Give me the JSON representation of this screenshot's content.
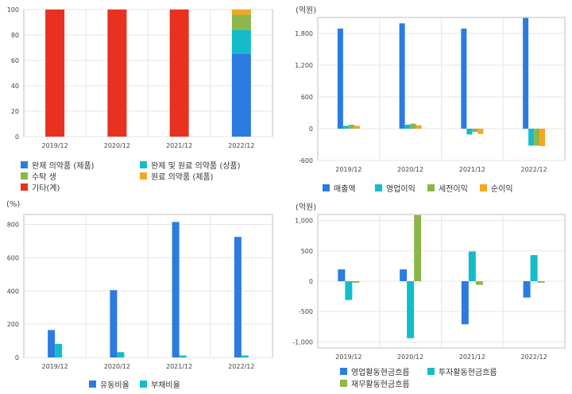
{
  "colors": {
    "blue": "#2b7be0",
    "teal": "#14bcc9",
    "green": "#8db64a",
    "orange": "#f5a623",
    "red": "#e8311f",
    "grid": "#e6e6e6",
    "axis": "#bfbfbf"
  },
  "chart_data": [
    {
      "id": "product-mix",
      "type": "bar",
      "stacked": true,
      "unit": "",
      "categories": [
        "2019/12",
        "2020/12",
        "2021/12",
        "2022/12"
      ],
      "ylim": [
        0,
        100
      ],
      "yticks": [
        "0",
        "20",
        "40",
        "60",
        "80",
        "100"
      ],
      "grid": true,
      "legend_position": "bottom",
      "series": [
        {
          "name": "완제 의약품 (제품)",
          "color": "#2b7be0",
          "values": [
            0,
            0,
            0,
            65
          ]
        },
        {
          "name": "완제 및 원료 의약품 (상품)",
          "color": "#14bcc9",
          "values": [
            0,
            0,
            0,
            19
          ]
        },
        {
          "name": "수탁 생",
          "color": "#8db64a",
          "values": [
            0,
            0,
            0,
            12
          ]
        },
        {
          "name": "원료 의약품 (제품)",
          "color": "#f5a623",
          "values": [
            0,
            0,
            0,
            4
          ]
        },
        {
          "name": "기타(계)",
          "color": "#e8311f",
          "values": [
            100,
            100,
            100,
            0
          ]
        }
      ]
    },
    {
      "id": "income",
      "type": "bar",
      "stacked": false,
      "unit": "(억원)",
      "categories": [
        "2019/12",
        "2020/12",
        "2021/12",
        "2022/12"
      ],
      "ylim": [
        -600,
        2100
      ],
      "yticks": [
        "-600",
        "0",
        "600",
        "1,200",
        "1,800"
      ],
      "grid": true,
      "legend_position": "bottom",
      "series": [
        {
          "name": "매출액",
          "color": "#2b7be0",
          "values": [
            1890,
            1990,
            1890,
            2090
          ]
        },
        {
          "name": "영업이익",
          "color": "#14bcc9",
          "values": [
            55,
            75,
            -110,
            -320
          ]
        },
        {
          "name": "세전이익",
          "color": "#8db64a",
          "values": [
            75,
            95,
            -60,
            -320
          ]
        },
        {
          "name": "순이익",
          "color": "#f5a623",
          "values": [
            55,
            65,
            -100,
            -330
          ]
        }
      ]
    },
    {
      "id": "ratios",
      "type": "bar",
      "stacked": false,
      "unit": "(%)",
      "categories": [
        "2019/12",
        "2020/12",
        "2021/12",
        "2022/12"
      ],
      "ylim": [
        0,
        860
      ],
      "yticks": [
        "0",
        "200",
        "400",
        "600",
        "800"
      ],
      "grid": true,
      "legend_position": "bottom",
      "series": [
        {
          "name": "유동비율",
          "color": "#2b7be0",
          "values": [
            165,
            405,
            815,
            725
          ]
        },
        {
          "name": "부채비율",
          "color": "#14bcc9",
          "values": [
            82,
            32,
            12,
            12
          ]
        }
      ]
    },
    {
      "id": "cashflow",
      "type": "bar",
      "stacked": false,
      "unit": "(억원)",
      "categories": [
        "2019/12",
        "2020/12",
        "2021/12",
        "2022/12"
      ],
      "ylim": [
        -1100,
        1100
      ],
      "yticks": [
        "-1,000",
        "-500",
        "0",
        "500",
        "1,000"
      ],
      "grid": true,
      "legend_position": "bottom",
      "series": [
        {
          "name": "영업활동현금흐름",
          "color": "#2b7be0",
          "values": [
            195,
            195,
            -710,
            -270
          ]
        },
        {
          "name": "투자활동현금흐름",
          "color": "#14bcc9",
          "values": [
            -310,
            -940,
            490,
            430
          ]
        },
        {
          "name": "재무활동현금흐름",
          "color": "#8db64a",
          "values": [
            -25,
            1090,
            -60,
            -25
          ]
        }
      ]
    }
  ]
}
